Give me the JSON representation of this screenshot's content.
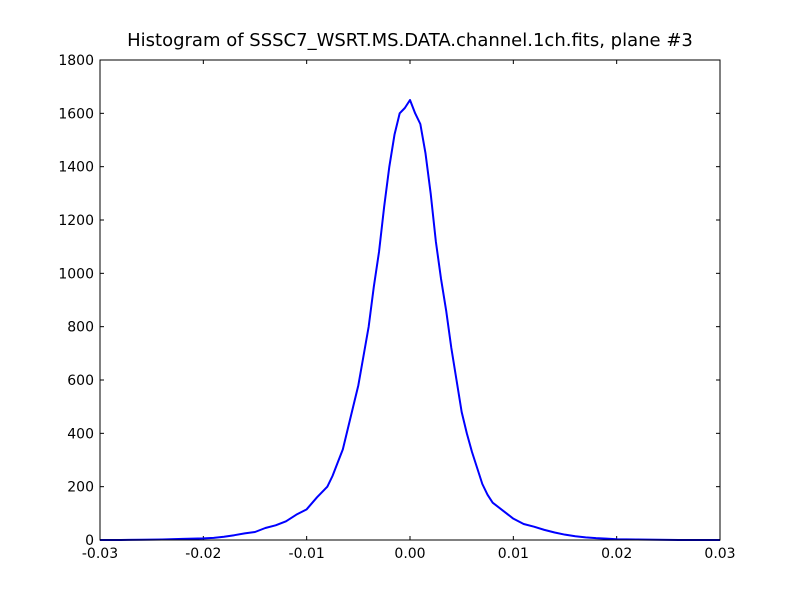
{
  "chart_data": {
    "type": "line",
    "title": "Histogram of SSSC7_WSRT.MS.DATA.channel.1ch.fits, plane #3",
    "xlabel": "",
    "ylabel": "",
    "xlim": [
      -0.03,
      0.03
    ],
    "ylim": [
      0,
      1800
    ],
    "x_ticks": [
      -0.03,
      -0.02,
      -0.01,
      0.0,
      0.01,
      0.02,
      0.03
    ],
    "x_tick_labels": [
      "-0.03",
      "-0.02",
      "-0.01",
      "0.00",
      "0.01",
      "0.02",
      "0.03"
    ],
    "y_ticks": [
      0,
      200,
      400,
      600,
      800,
      1000,
      1200,
      1400,
      1600,
      1800
    ],
    "y_tick_labels": [
      "0",
      "200",
      "400",
      "600",
      "800",
      "1000",
      "1200",
      "1400",
      "1600",
      "1800"
    ],
    "grid": false,
    "legend": "none",
    "series": [
      {
        "color": "#0000ff",
        "x": [
          -0.03,
          -0.028,
          -0.026,
          -0.024,
          -0.022,
          -0.02,
          -0.019,
          -0.018,
          -0.017,
          -0.016,
          -0.015,
          -0.014,
          -0.013,
          -0.012,
          -0.011,
          -0.01,
          -0.009,
          -0.008,
          -0.0075,
          -0.007,
          -0.0065,
          -0.006,
          -0.0055,
          -0.005,
          -0.0045,
          -0.004,
          -0.0035,
          -0.003,
          -0.0025,
          -0.002,
          -0.0015,
          -0.001,
          -0.0005,
          0.0,
          0.0005,
          0.001,
          0.0015,
          0.002,
          0.0025,
          0.003,
          0.0035,
          0.004,
          0.0045,
          0.005,
          0.0055,
          0.006,
          0.0065,
          0.007,
          0.0075,
          0.008,
          0.009,
          0.01,
          0.011,
          0.012,
          0.013,
          0.014,
          0.015,
          0.016,
          0.017,
          0.018,
          0.019,
          0.02,
          0.022,
          0.024,
          0.026,
          0.028,
          0.03
        ],
        "y": [
          0,
          0,
          1,
          2,
          4,
          6,
          8,
          12,
          18,
          25,
          30,
          45,
          55,
          70,
          95,
          115,
          160,
          200,
          240,
          290,
          340,
          420,
          500,
          580,
          690,
          800,
          950,
          1080,
          1250,
          1400,
          1520,
          1600,
          1620,
          1650,
          1600,
          1560,
          1450,
          1300,
          1120,
          980,
          860,
          720,
          600,
          480,
          400,
          330,
          270,
          210,
          170,
          140,
          110,
          80,
          60,
          50,
          38,
          28,
          20,
          14,
          10,
          7,
          5,
          3,
          2,
          1,
          0,
          0,
          0
        ]
      }
    ]
  }
}
